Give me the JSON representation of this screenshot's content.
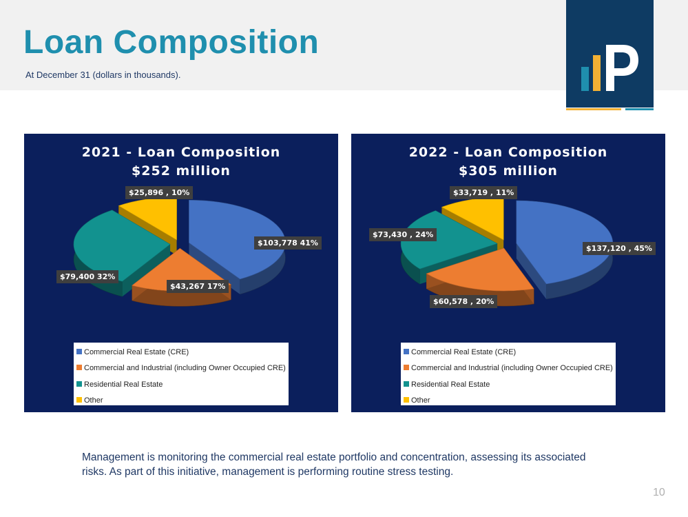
{
  "page": {
    "title": "Loan Composition",
    "subtitle": "At December 31 (dollars in thousands).",
    "note": "Management is monitoring the commercial real estate portfolio and concentration, assessing its associated risks. As part of this initiative, management is performing routine stress testing.",
    "page_number": "10"
  },
  "logo": {
    "bar_colors": [
      "#1f8fae",
      "#f2b134"
    ],
    "line_colors": [
      "#f2b134",
      "#1f8fae"
    ],
    "box_color": "#0e3b63"
  },
  "colors": {
    "panel_bg": "#0b1f5c",
    "title_accent": "#1f8fae"
  },
  "chart_data": [
    {
      "type": "pie",
      "title_line1": "2021 - Loan Composition",
      "title_line2": "$252 million",
      "categories": [
        "Commercial Real Estate (CRE)",
        "Commercial and Industrial (including Owner Occupied CRE)",
        "Residential Real Estate",
        "Other"
      ],
      "values": [
        103778,
        43267,
        79400,
        25896
      ],
      "percents": [
        41,
        17,
        32,
        10
      ],
      "labels": [
        "$103,778 41%",
        "$43,267 17%",
        "$79,400  32%",
        "$25,896 , 10%"
      ],
      "colors": [
        "#4472c4",
        "#ed7d31",
        "#12928f",
        "#ffc000"
      ],
      "legend_position": "bottom",
      "legend": [
        {
          "label": "Commercial Real Estate (CRE)",
          "color": "#4472c4"
        },
        {
          "label": "Commercial and Industrial (including Owner Occupied CRE)",
          "color": "#ed7d31"
        },
        {
          "label": "Residential Real Estate",
          "color": "#12928f"
        },
        {
          "label": "Other",
          "color": "#ffc000"
        }
      ]
    },
    {
      "type": "pie",
      "title_line1": "2022 - Loan Composition",
      "title_line2": "$305 million",
      "categories": [
        "Commercial Real Estate (CRE)",
        "Commercial and Industrial (including Owner Occupied CRE)",
        "Residential Real Estate",
        "Other"
      ],
      "values": [
        137120,
        60578,
        73430,
        33719
      ],
      "percents": [
        45,
        20,
        24,
        11
      ],
      "labels": [
        "$137,120 , 45%",
        "$60,578 , 20%",
        "$73,430 , 24%",
        "$33,719 , 11%"
      ],
      "colors": [
        "#4472c4",
        "#ed7d31",
        "#12928f",
        "#ffc000"
      ],
      "legend_position": "bottom",
      "legend": [
        {
          "label": "Commercial Real Estate (CRE)",
          "color": "#4472c4"
        },
        {
          "label": "Commercial and Industrial (including Owner Occupied CRE)",
          "color": "#ed7d31"
        },
        {
          "label": "Residential Real Estate",
          "color": "#12928f"
        },
        {
          "label": "Other",
          "color": "#ffc000"
        }
      ]
    }
  ]
}
